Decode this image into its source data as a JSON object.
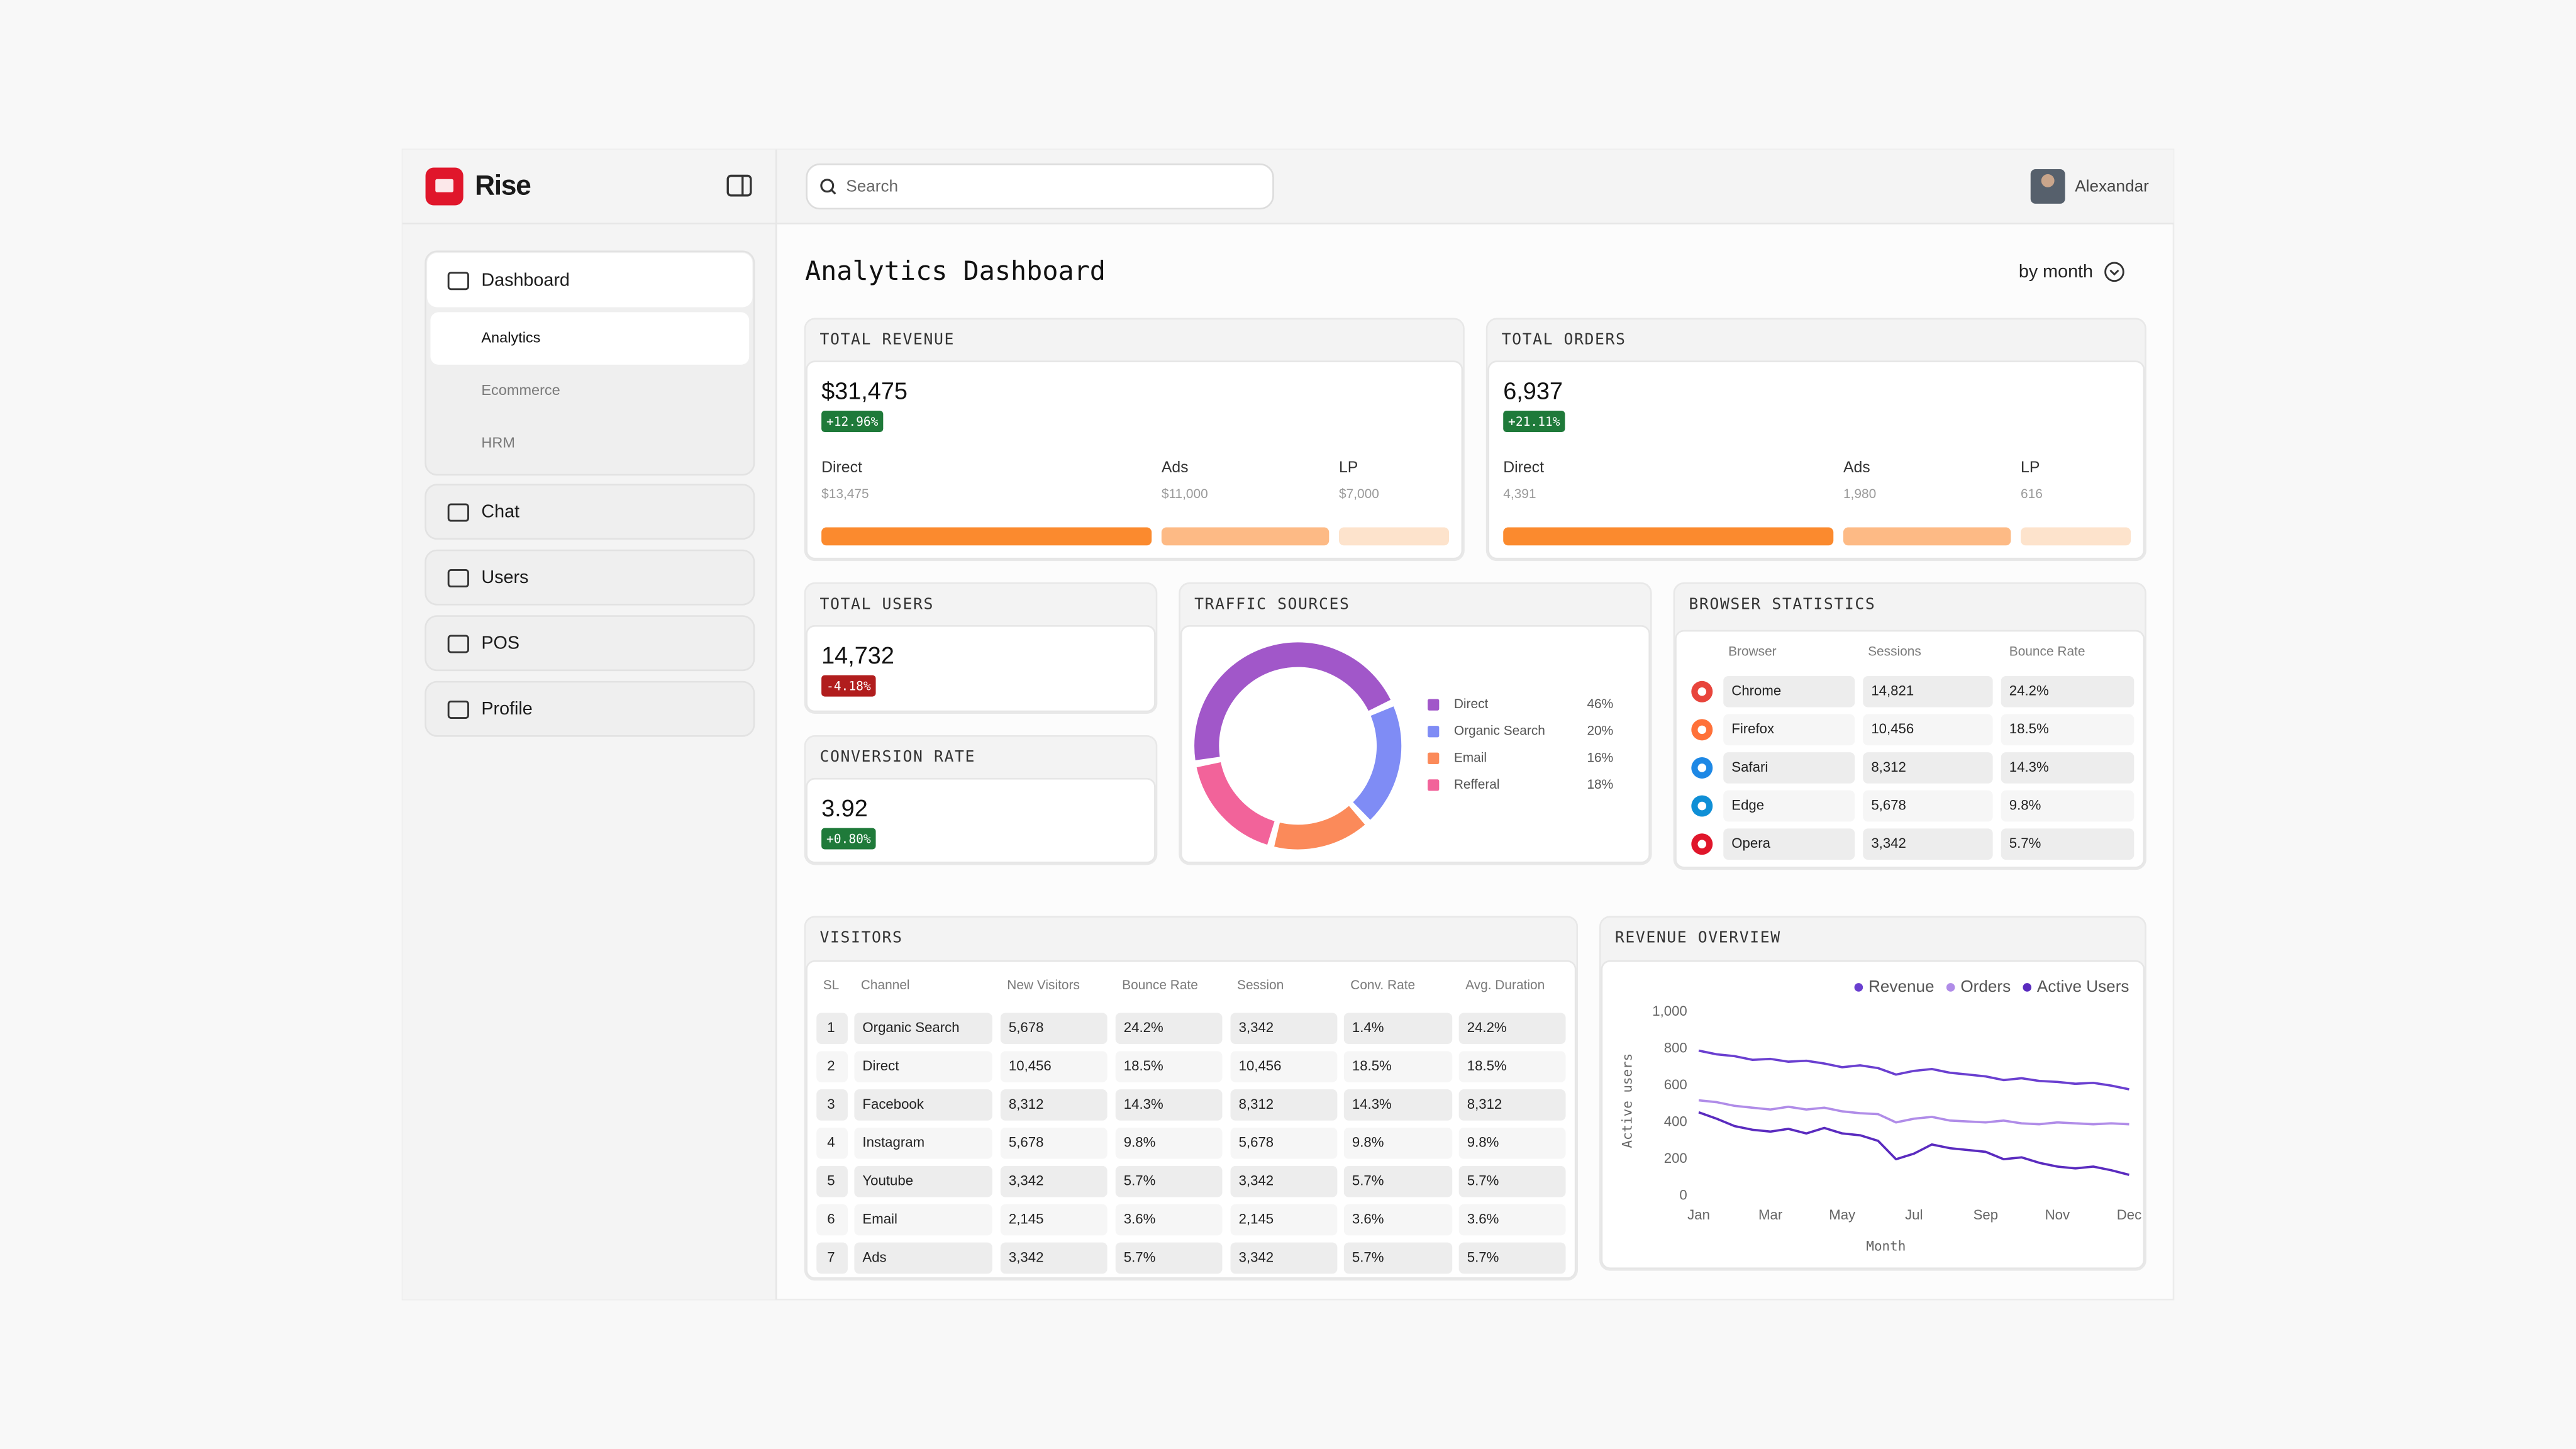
{
  "brand": "Rise",
  "search": "Search",
  "user": "Alexandar",
  "nav": [
    {
      "label": "Dashboard",
      "children": [
        "Analytics",
        "Ecommerce",
        "HRM"
      ]
    },
    {
      "label": "Chat"
    },
    {
      "label": "Users"
    },
    {
      "label": "POS"
    },
    {
      "label": "Profile"
    }
  ],
  "title": "Analytics Dashboard",
  "period": "by month",
  "revenue": {
    "title": "TOTAL REVENUE",
    "value": "$31,475",
    "change": "+12.96%",
    "breakdown": [
      {
        "label": "Direct",
        "value": "$13,475"
      },
      {
        "label": "Ads",
        "value": "$11,000"
      },
      {
        "label": "LP",
        "value": "$7,000"
      }
    ]
  },
  "orders": {
    "title": "TOTAL ORDERS",
    "value": "6,937",
    "change": "+21.11%",
    "breakdown": [
      {
        "label": "Direct",
        "value": "4,391"
      },
      {
        "label": "Ads",
        "value": "1,980"
      },
      {
        "label": "LP",
        "value": "616"
      }
    ]
  },
  "users": {
    "title": "TOTAL USERS",
    "value": "14,732",
    "change": "-4.18%"
  },
  "conversion": {
    "title": "CONVERSION RATE",
    "value": "3.92",
    "change": "+0.80%"
  },
  "browser": {
    "title": "BROWSER STATISTICS",
    "columns": [
      "Browser",
      "Sessions",
      "Bounce Rate"
    ],
    "rows": [
      [
        "Chrome",
        "14,821",
        "24.2%"
      ],
      [
        "Firefox",
        "10,456",
        "18.5%"
      ],
      [
        "Safari",
        "8,312",
        "14.3%"
      ],
      [
        "Edge",
        "5,678",
        "9.8%"
      ],
      [
        "Opera",
        "3,342",
        "5.7%"
      ]
    ]
  },
  "visitors": {
    "title": "VISITORS",
    "columns": [
      "SL",
      "Channel",
      "New Visitors",
      "Bounce Rate",
      "Session",
      "Conv. Rate",
      "Avg. Duration"
    ],
    "rows": [
      [
        "1",
        "Organic Search",
        "5,678",
        "24.2%",
        "3,342",
        "1.4%",
        "24.2%"
      ],
      [
        "2",
        "Direct",
        "10,456",
        "18.5%",
        "10,456",
        "18.5%",
        "18.5%"
      ],
      [
        "3",
        "Facebook",
        "8,312",
        "14.3%",
        "8,312",
        "14.3%",
        "8,312"
      ],
      [
        "4",
        "Instagram",
        "5,678",
        "9.8%",
        "5,678",
        "9.8%",
        "9.8%"
      ],
      [
        "5",
        "Youtube",
        "3,342",
        "5.7%",
        "3,342",
        "5.7%",
        "5.7%"
      ],
      [
        "6",
        "Email",
        "2,145",
        "3.6%",
        "2,145",
        "3.6%",
        "3.6%"
      ],
      [
        "7",
        "Ads",
        "3,342",
        "5.7%",
        "3,342",
        "5.7%",
        "5.7%"
      ]
    ]
  },
  "chart_data": [
    {
      "type": "pie",
      "title": "TRAFFIC SOURCES",
      "categories": [
        "Direct",
        "Organic Search",
        "Email",
        "Refferal"
      ],
      "values": [
        46,
        20,
        16,
        18
      ],
      "value_labels": [
        "46%",
        "20%",
        "16%",
        "18%"
      ],
      "colors": [
        "#a157c9",
        "#7f8cf5",
        "#fb8a5a",
        "#f2639a"
      ]
    },
    {
      "type": "line",
      "title": "REVENUE OVERVIEW",
      "x_label": "Month",
      "y_label": "Active users",
      "categories": [
        "Jan",
        null,
        null,
        null,
        "Mar",
        null,
        null,
        null,
        "May",
        null,
        null,
        null,
        "Jul",
        null,
        null,
        null,
        "Sep",
        null,
        null,
        null,
        "Nov",
        null,
        null,
        null,
        "Dec"
      ],
      "ylim": [
        0,
        1000
      ],
      "yticks": [
        0,
        200,
        400,
        600,
        800,
        {
          "value": 1000,
          "label": "1,000"
        }
      ],
      "grid": false,
      "series": [
        {
          "name": "Revenue",
          "color": "#6a3fd0",
          "values": [
            790,
            770,
            760,
            740,
            745,
            730,
            735,
            720,
            700,
            710,
            695,
            660,
            680,
            690,
            670,
            660,
            650,
            630,
            640,
            625,
            620,
            610,
            615,
            600,
            580
          ]
        },
        {
          "name": "Orders",
          "color": "#b08ce8",
          "values": [
            520,
            510,
            490,
            480,
            470,
            485,
            470,
            480,
            460,
            450,
            445,
            400,
            420,
            430,
            410,
            405,
            400,
            410,
            395,
            390,
            400,
            395,
            390,
            395,
            390
          ]
        },
        {
          "name": "Active Users",
          "color": "#5a2bbf",
          "values": [
            455,
            420,
            380,
            360,
            350,
            365,
            340,
            370,
            340,
            330,
            300,
            200,
            230,
            280,
            260,
            250,
            240,
            200,
            210,
            180,
            160,
            150,
            160,
            140,
            115
          ]
        }
      ]
    }
  ]
}
